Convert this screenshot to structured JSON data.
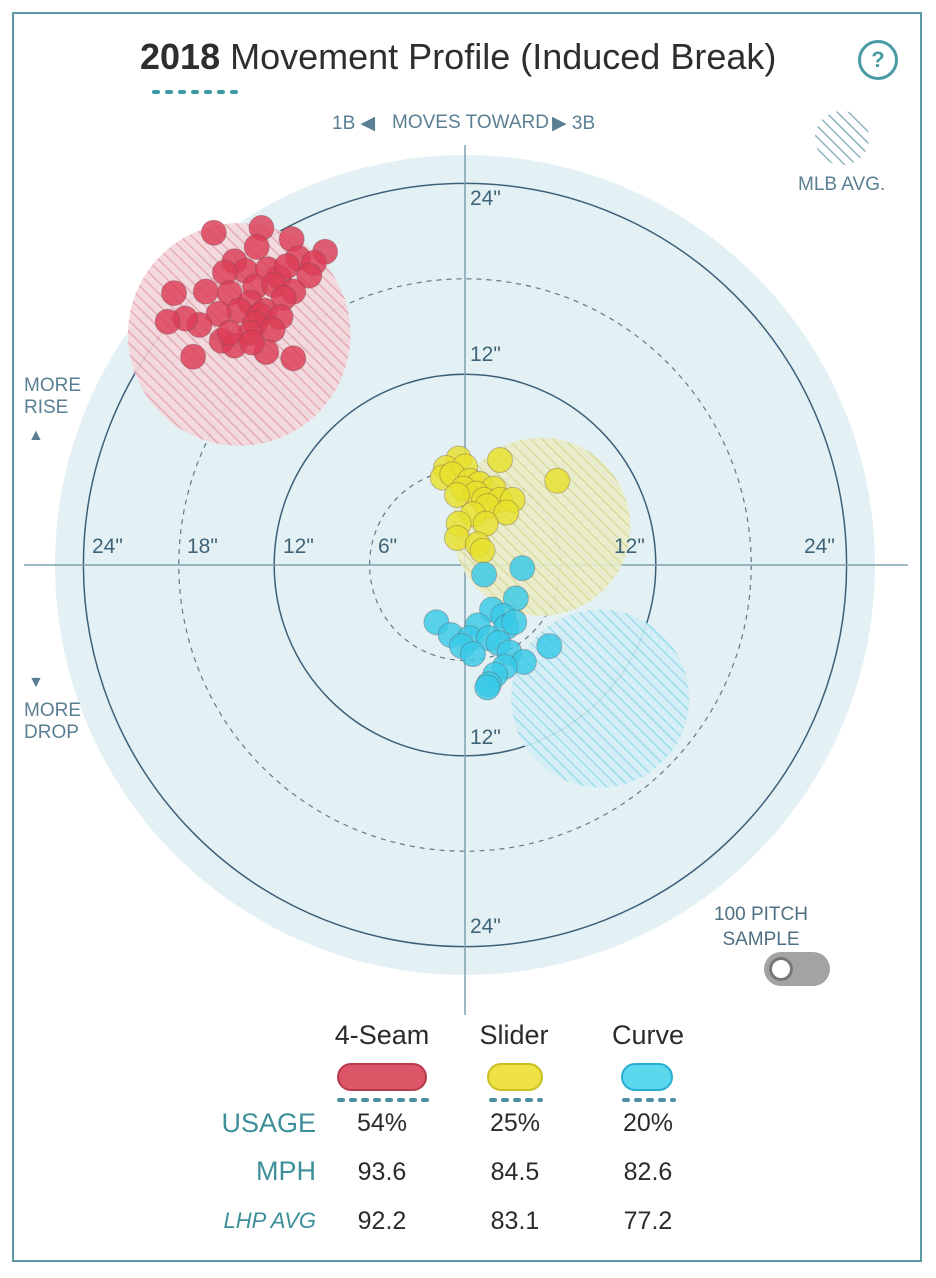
{
  "header": {
    "year": "2018",
    "title": "Movement Profile (Induced Break)",
    "help_label": "?"
  },
  "direction": {
    "left": "1B",
    "middle": "MOVES TOWARD",
    "right": "3B",
    "left_arrow": "◀",
    "right_arrow": "▶"
  },
  "mlb_avg_label": "MLB AVG.",
  "side": {
    "rise_line1": "MORE",
    "rise_line2": "RISE",
    "rise_arrow": "▲",
    "drop_arrow": "▼",
    "drop_line1": "MORE",
    "drop_line2": "DROP"
  },
  "sample_toggle": {
    "line1": "100 PITCH",
    "line2": "SAMPLE",
    "on": false
  },
  "chart_data": {
    "type": "scatter",
    "x_ticks": [
      "24\"",
      "18\"",
      "12\"",
      "6\"",
      "12\"",
      "24\""
    ],
    "y_ticks": [
      "24\"",
      "12\"",
      "12\"",
      "24\""
    ],
    "rings_inches": [
      6,
      12,
      18,
      24
    ],
    "series": [
      {
        "name": "4-Seam",
        "color": "#dc3d55",
        "avg_center": [
          -14.2,
          14.5
        ],
        "avg_radius": 7.0,
        "points": [
          [
            -15.8,
            20.9
          ],
          [
            -12.8,
            21.2
          ],
          [
            -10.9,
            20.5
          ],
          [
            -13.1,
            20
          ],
          [
            -10.5,
            19.3
          ],
          [
            -8.8,
            19.7
          ],
          [
            -9.5,
            19
          ],
          [
            -14.5,
            19.1
          ],
          [
            -13.8,
            18.5
          ],
          [
            -11.7,
            18.1
          ],
          [
            -15.1,
            18.4
          ],
          [
            -12.4,
            18.6
          ],
          [
            -9.8,
            18.2
          ],
          [
            -11.2,
            18.8
          ],
          [
            -13.2,
            17.5
          ],
          [
            -14.8,
            17.1
          ],
          [
            -12,
            17.6
          ],
          [
            -10.8,
            17.2
          ],
          [
            -16.3,
            17.2
          ],
          [
            -13.5,
            16.5
          ],
          [
            -11.4,
            16.8
          ],
          [
            -12.6,
            16
          ],
          [
            -14.2,
            16
          ],
          [
            -12.9,
            15.7
          ],
          [
            -15.5,
            15.8
          ],
          [
            -11.6,
            15.6
          ],
          [
            -16.7,
            15.1
          ],
          [
            -13.2,
            15.2
          ],
          [
            -18.3,
            17.1
          ],
          [
            -12.1,
            14.8
          ],
          [
            -13.5,
            14.6
          ],
          [
            -15.3,
            14.1
          ],
          [
            -17.6,
            15.5
          ],
          [
            -18.7,
            15.3
          ],
          [
            -14.5,
            13.8
          ],
          [
            -12.5,
            13.4
          ],
          [
            -14.8,
            14.6
          ],
          [
            -10.8,
            13
          ],
          [
            -17.1,
            13.1
          ],
          [
            -13.4,
            14
          ]
        ]
      },
      {
        "name": "Slider",
        "color": "#e6e02c",
        "avg_center": [
          4.8,
          2.4
        ],
        "avg_radius": 5.6,
        "points": [
          [
            -0.4,
            6.7
          ],
          [
            -1.2,
            6.1
          ],
          [
            0,
            6.2
          ],
          [
            -1.4,
            5.5
          ],
          [
            -0.8,
            5.7
          ],
          [
            0.3,
            5.3
          ],
          [
            2.2,
            6.6
          ],
          [
            0.9,
            5.1
          ],
          [
            -0.1,
            4.8
          ],
          [
            1.8,
            4.8
          ],
          [
            0.7,
            4.5
          ],
          [
            -0.5,
            4.4
          ],
          [
            1.2,
            4.1
          ],
          [
            2.2,
            4.1
          ],
          [
            3,
            4.1
          ],
          [
            5.8,
            5.3
          ],
          [
            1.4,
            3.7
          ],
          [
            2.6,
            3.3
          ],
          [
            0.5,
            3.2
          ],
          [
            -0.4,
            2.6
          ],
          [
            1.3,
            2.6
          ],
          [
            -0.5,
            1.7
          ],
          [
            0.8,
            1.3
          ],
          [
            1.1,
            0.9
          ]
        ]
      },
      {
        "name": "Curve",
        "color": "#38c9e8",
        "avg_center": [
          8.5,
          -8.4
        ],
        "avg_radius": 5.6,
        "points": [
          [
            1.2,
            -0.6
          ],
          [
            3.6,
            -0.2
          ],
          [
            3.2,
            -2.1
          ],
          [
            1.7,
            -2.8
          ],
          [
            2.4,
            -3.2
          ],
          [
            -1.8,
            -3.6
          ],
          [
            0.8,
            -3.8
          ],
          [
            2.6,
            -3.9
          ],
          [
            3.1,
            -3.6
          ],
          [
            -0.9,
            -4.4
          ],
          [
            0.3,
            -4.6
          ],
          [
            1.5,
            -4.6
          ],
          [
            2.1,
            -4.9
          ],
          [
            -0.2,
            -5.1
          ],
          [
            5.3,
            -5.1
          ],
          [
            0.5,
            -5.6
          ],
          [
            2.8,
            -5.5
          ],
          [
            3.7,
            -6.1
          ],
          [
            2.5,
            -6.4
          ],
          [
            1.9,
            -6.9
          ],
          [
            1.5,
            -7.5
          ],
          [
            1.4,
            -7.7
          ]
        ]
      }
    ]
  },
  "legend": {
    "items": [
      {
        "name": "4-Seam",
        "color": "#dc5668",
        "border": "#b83a4e"
      },
      {
        "name": "Slider",
        "color": "#eee245",
        "border": "#c9bf20"
      },
      {
        "name": "Curve",
        "color": "#5bd7ee",
        "border": "#26afd0"
      }
    ]
  },
  "stats": {
    "rows": [
      {
        "label": "USAGE",
        "values": [
          "54%",
          "25%",
          "20%"
        ],
        "italic": false
      },
      {
        "label": "MPH",
        "values": [
          "93.6",
          "84.5",
          "82.6"
        ],
        "italic": false
      },
      {
        "label": "LHP AVG",
        "values": [
          "92.2",
          "83.1",
          "77.2"
        ],
        "italic": true
      }
    ]
  }
}
